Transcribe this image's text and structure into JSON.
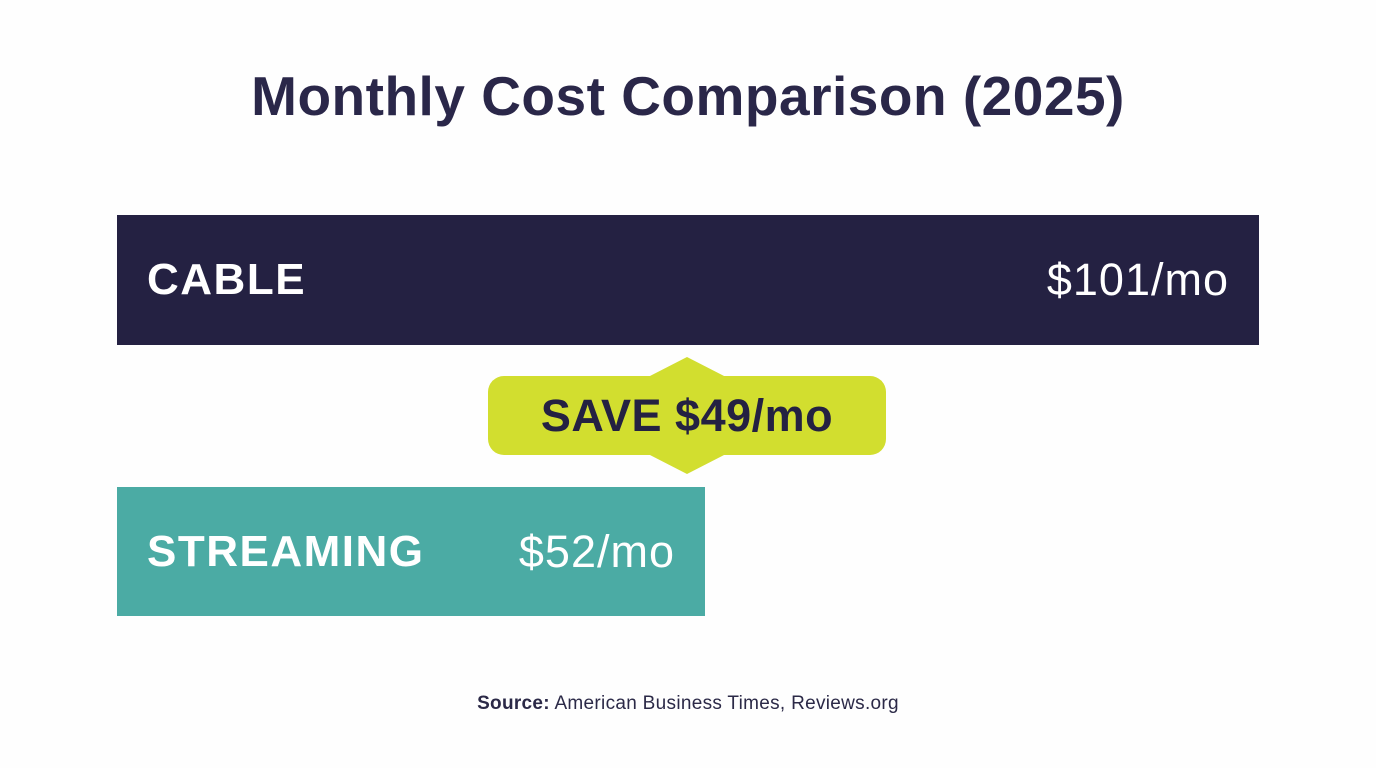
{
  "title": "Monthly Cost Comparison (2025)",
  "bars": [
    {
      "label": "CABLE",
      "value_label": "$101/mo",
      "color": "#242142",
      "text_color": "#FFFFFF"
    },
    {
      "label": "STREAMING",
      "value_label": "$52/mo",
      "color": "#4BABA4",
      "text_color": "#FFFFFF"
    }
  ],
  "badge": {
    "label": "SAVE $49/mo",
    "color": "#D2DE2F",
    "text_color": "#242142"
  },
  "source": {
    "label": "Source:",
    "text": "American Business Times, Reviews.org"
  },
  "chart_data": {
    "type": "bar",
    "orientation": "horizontal",
    "title": "Monthly Cost Comparison (2025)",
    "categories": [
      "CABLE",
      "STREAMING"
    ],
    "values": [
      101,
      52
    ],
    "unit": "USD per month",
    "value_labels": [
      "$101/mo",
      "$52/mo"
    ],
    "annotation": "SAVE $49/mo",
    "bar_colors": [
      "#242142",
      "#4BABA4"
    ],
    "annotation_color": "#D2DE2F",
    "title_color": "#2A2749",
    "source": "Source: American Business Times, Reviews.org",
    "xlim": [
      0,
      101
    ],
    "grid": false,
    "legend": false
  }
}
